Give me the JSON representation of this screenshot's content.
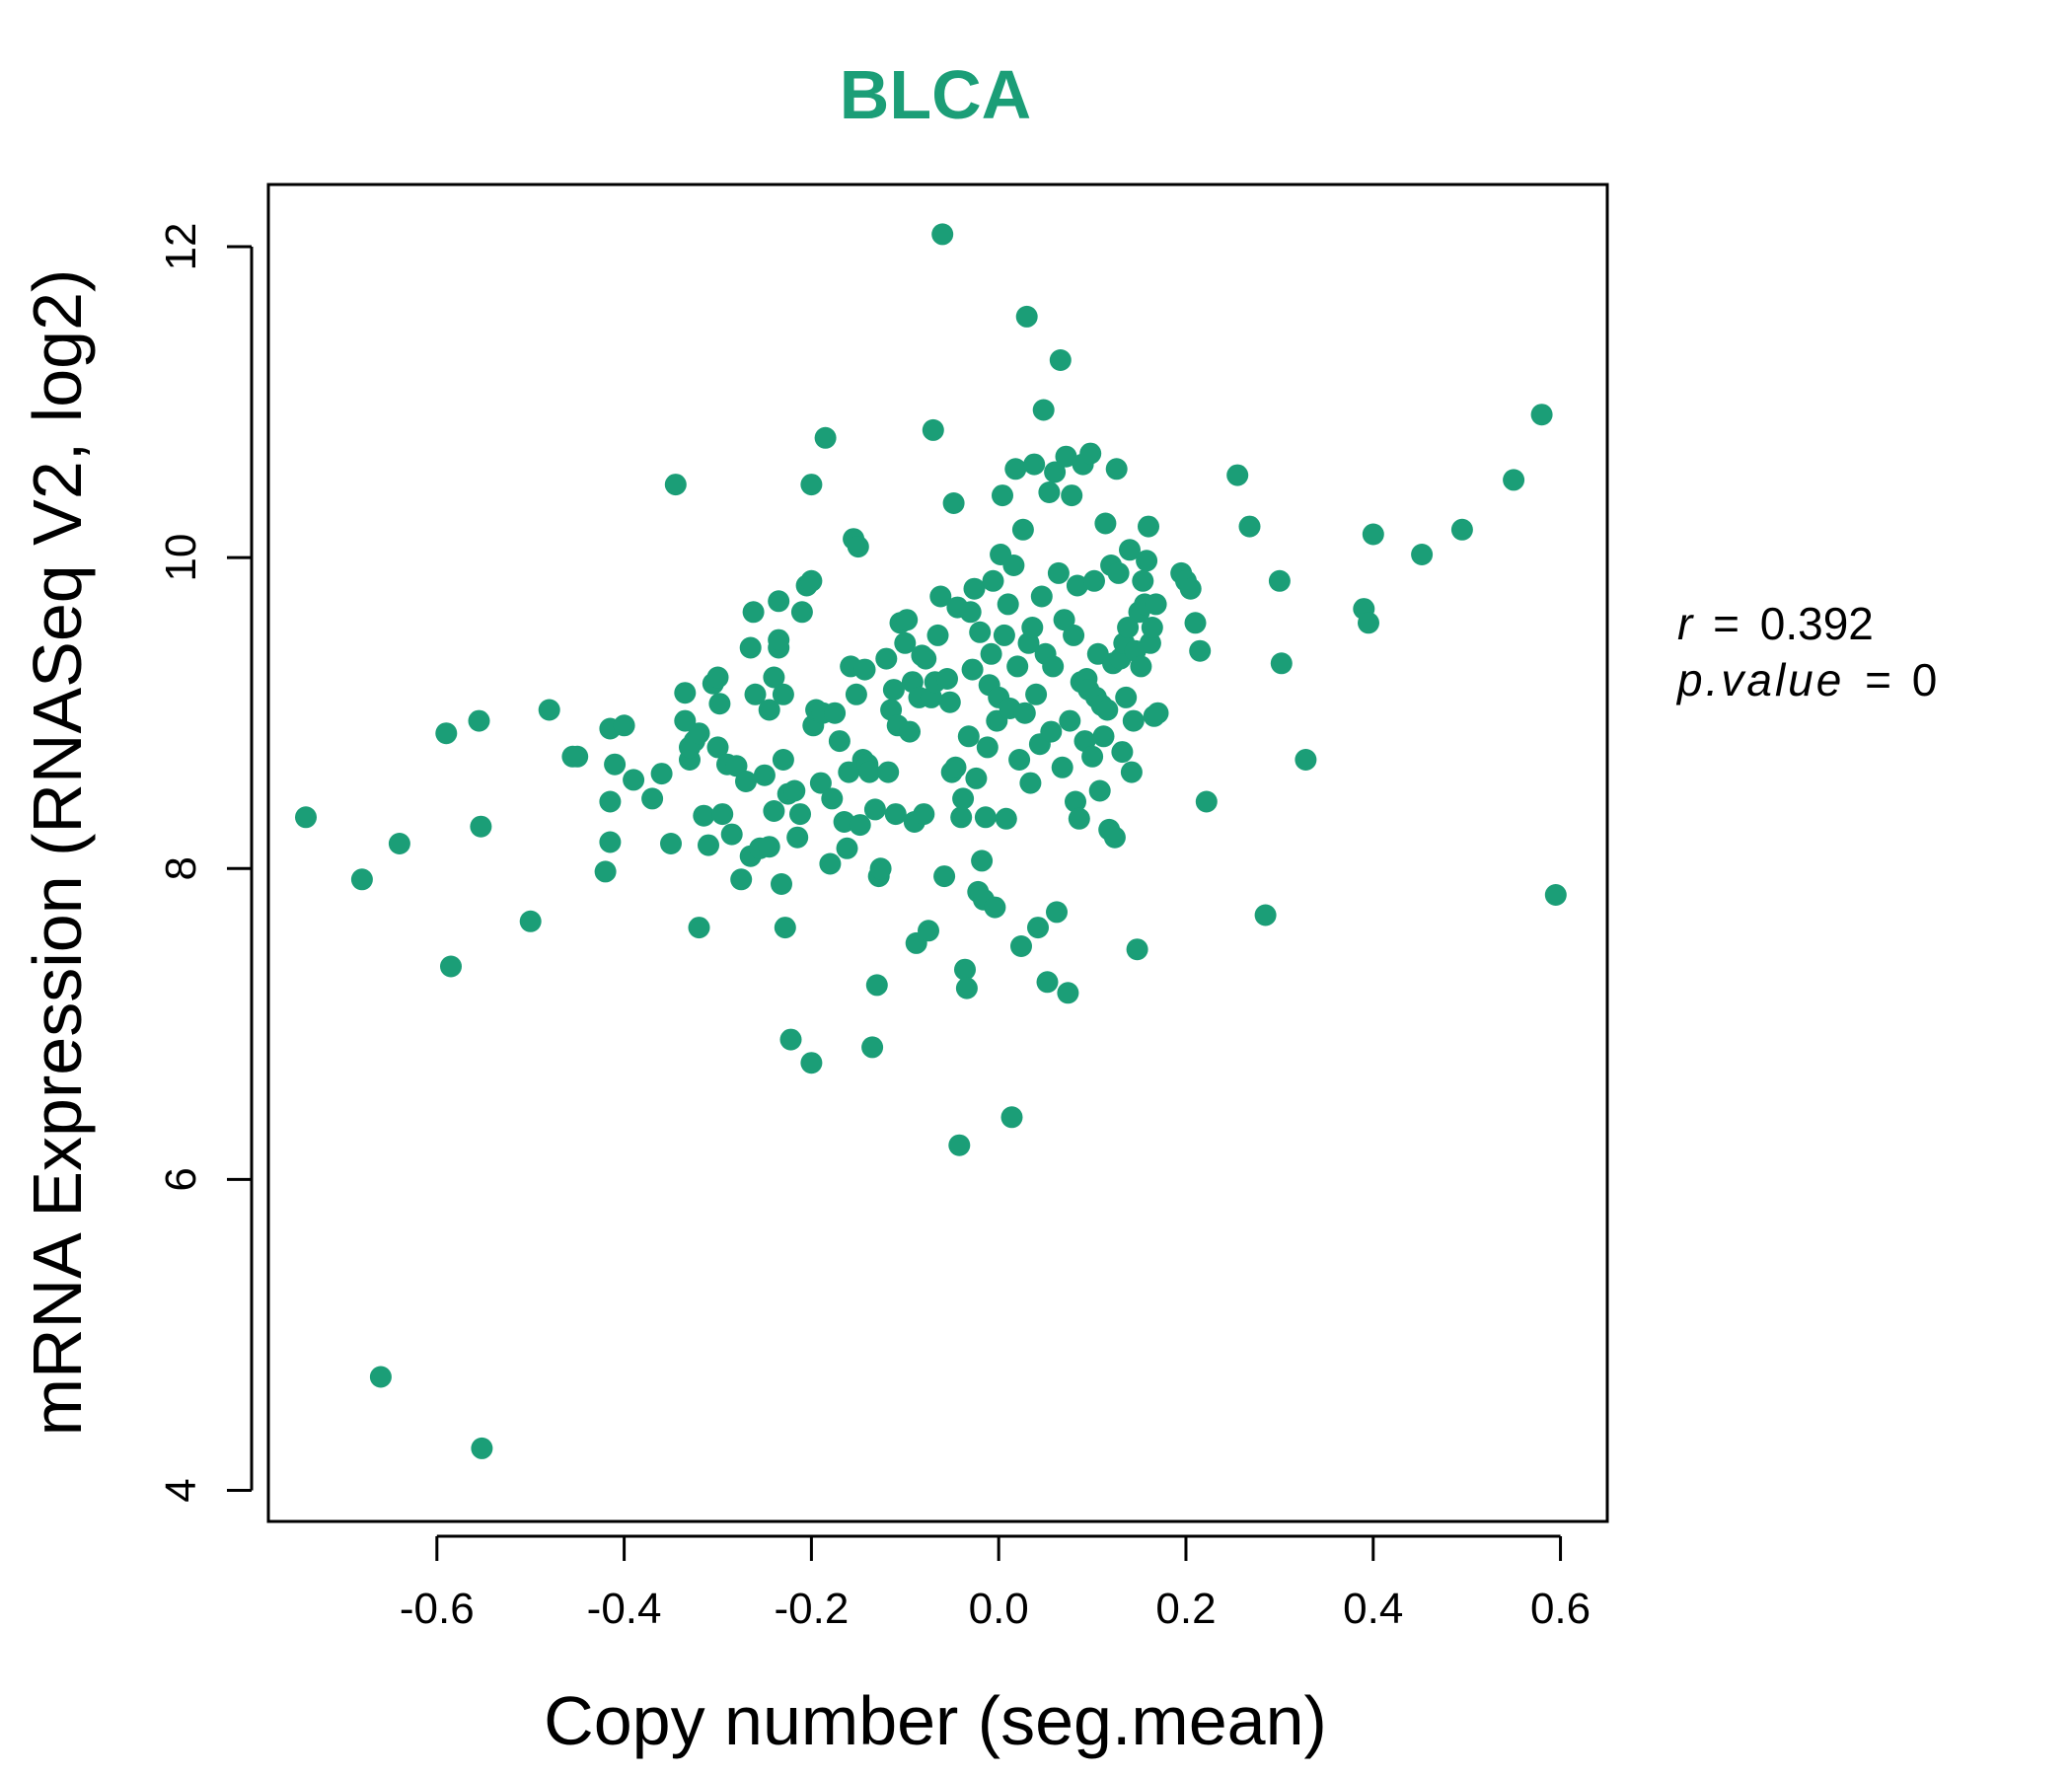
{
  "chart_data": {
    "type": "scatter",
    "title": "BLCA",
    "xlabel": "Copy number (seg.mean)",
    "ylabel": "mRNA Expression (RNASeq V2, log2)",
    "xlim": [
      -0.78,
      0.65
    ],
    "ylim": [
      3.8,
      12.4
    ],
    "xticks": [
      -0.6,
      -0.4,
      -0.2,
      0.0,
      0.2,
      0.4,
      0.6
    ],
    "xtick_labels": [
      "-0.6",
      "-0.4",
      "-0.2",
      "0.0",
      "0.2",
      "0.4",
      "0.6"
    ],
    "yticks": [
      4,
      6,
      8,
      10,
      12
    ],
    "ytick_labels": [
      "4",
      "6",
      "8",
      "10",
      "12"
    ],
    "grid": false,
    "legend": "none",
    "colors": {
      "points": "#1B9E77",
      "title": "#1B9E77",
      "axis": "#000000"
    },
    "annotation": {
      "r_label": "r",
      "r_value": "0.392",
      "p_label": "p.value",
      "p_value": "0",
      "eq": "="
    },
    "series": [
      {
        "points": [
          [
            -0.74,
            8.33
          ],
          [
            -0.68,
            7.93
          ],
          [
            -0.66,
            4.73
          ],
          [
            -0.64,
            8.16
          ],
          [
            -0.59,
            8.87
          ],
          [
            -0.585,
            7.37
          ],
          [
            -0.555,
            8.95
          ],
          [
            -0.553,
            8.27
          ],
          [
            -0.552,
            4.27
          ],
          [
            -0.5,
            7.66
          ],
          [
            -0.48,
            9.02
          ],
          [
            -0.455,
            8.72
          ],
          [
            -0.45,
            8.72
          ],
          [
            -0.42,
            7.98
          ],
          [
            -0.415,
            8.43
          ],
          [
            -0.415,
            8.17
          ],
          [
            -0.415,
            8.9
          ],
          [
            -0.41,
            8.67
          ],
          [
            -0.4,
            8.92
          ],
          [
            -0.39,
            8.57
          ],
          [
            -0.37,
            8.45
          ],
          [
            -0.36,
            8.61
          ],
          [
            -0.35,
            8.16
          ],
          [
            -0.345,
            10.47
          ],
          [
            -0.335,
            9.13
          ],
          [
            -0.335,
            8.95
          ],
          [
            -0.33,
            8.7
          ],
          [
            -0.33,
            8.78
          ],
          [
            -0.325,
            8.82
          ],
          [
            -0.32,
            8.87
          ],
          [
            -0.32,
            7.62
          ],
          [
            -0.315,
            8.34
          ],
          [
            -0.31,
            8.15
          ],
          [
            -0.305,
            9.19
          ],
          [
            -0.3,
            9.23
          ],
          [
            -0.3,
            8.78
          ],
          [
            -0.298,
            9.06
          ],
          [
            -0.295,
            8.35
          ],
          [
            -0.29,
            8.67
          ],
          [
            -0.285,
            8.22
          ],
          [
            -0.28,
            8.66
          ],
          [
            -0.275,
            7.93
          ],
          [
            -0.27,
            8.56
          ],
          [
            -0.265,
            9.42
          ],
          [
            -0.265,
            8.08
          ],
          [
            -0.262,
            9.65
          ],
          [
            -0.26,
            9.12
          ],
          [
            -0.255,
            8.13
          ],
          [
            -0.25,
            8.6
          ],
          [
            -0.245,
            8.14
          ],
          [
            -0.245,
            9.02
          ],
          [
            -0.24,
            9.23
          ],
          [
            -0.24,
            8.37
          ],
          [
            -0.235,
            9.42
          ],
          [
            -0.235,
            9.47
          ],
          [
            -0.235,
            9.72
          ],
          [
            -0.232,
            7.9
          ],
          [
            -0.23,
            8.7
          ],
          [
            -0.23,
            9.12
          ],
          [
            -0.228,
            7.62
          ],
          [
            -0.225,
            8.48
          ],
          [
            -0.222,
            6.9
          ],
          [
            -0.218,
            8.5
          ],
          [
            -0.215,
            8.2
          ],
          [
            -0.212,
            8.35
          ],
          [
            -0.21,
            9.65
          ],
          [
            -0.205,
            9.82
          ],
          [
            -0.2,
            9.85
          ],
          [
            -0.2,
            6.75
          ],
          [
            -0.2,
            10.47
          ],
          [
            -0.198,
            8.92
          ],
          [
            -0.195,
            9.02
          ],
          [
            -0.19,
            8.55
          ],
          [
            -0.188,
            9.0
          ],
          [
            -0.185,
            10.77
          ],
          [
            -0.18,
            8.03
          ],
          [
            -0.178,
            8.45
          ],
          [
            -0.175,
            9.0
          ],
          [
            -0.17,
            8.82
          ],
          [
            -0.165,
            8.3
          ],
          [
            -0.162,
            8.13
          ],
          [
            -0.16,
            8.62
          ],
          [
            -0.158,
            9.3
          ],
          [
            -0.155,
            10.12
          ],
          [
            -0.152,
            9.12
          ],
          [
            -0.15,
            10.07
          ],
          [
            -0.148,
            8.28
          ],
          [
            -0.145,
            8.7
          ],
          [
            -0.143,
            9.28
          ],
          [
            -0.14,
            8.67
          ],
          [
            -0.138,
            8.62
          ],
          [
            -0.135,
            6.85
          ],
          [
            -0.132,
            8.38
          ],
          [
            -0.13,
            7.25
          ],
          [
            -0.128,
            7.95
          ],
          [
            -0.126,
            8.0
          ],
          [
            -0.12,
            9.35
          ],
          [
            -0.118,
            8.62
          ],
          [
            -0.115,
            9.02
          ],
          [
            -0.112,
            9.15
          ],
          [
            -0.11,
            8.35
          ],
          [
            -0.108,
            8.92
          ],
          [
            -0.105,
            9.58
          ],
          [
            -0.1,
            9.45
          ],
          [
            -0.098,
            9.6
          ],
          [
            -0.095,
            8.88
          ],
          [
            -0.092,
            9.2
          ],
          [
            -0.09,
            8.3
          ],
          [
            -0.088,
            7.52
          ],
          [
            -0.085,
            9.1
          ],
          [
            -0.082,
            9.37
          ],
          [
            -0.08,
            8.35
          ],
          [
            -0.078,
            9.35
          ],
          [
            -0.075,
            7.6
          ],
          [
            -0.072,
            9.1
          ],
          [
            -0.07,
            10.82
          ],
          [
            -0.068,
            9.2
          ],
          [
            -0.065,
            9.5
          ],
          [
            -0.062,
            9.75
          ],
          [
            -0.06,
            12.08
          ],
          [
            -0.058,
            7.95
          ],
          [
            -0.055,
            9.22
          ],
          [
            -0.052,
            9.07
          ],
          [
            -0.05,
            8.62
          ],
          [
            -0.048,
            10.35
          ],
          [
            -0.046,
            8.65
          ],
          [
            -0.044,
            9.68
          ],
          [
            -0.042,
            6.22
          ],
          [
            -0.04,
            8.33
          ],
          [
            -0.038,
            8.45
          ],
          [
            -0.036,
            7.35
          ],
          [
            -0.034,
            7.23
          ],
          [
            -0.032,
            8.85
          ],
          [
            -0.03,
            9.65
          ],
          [
            -0.028,
            9.28
          ],
          [
            -0.026,
            9.8
          ],
          [
            -0.024,
            8.58
          ],
          [
            -0.022,
            7.85
          ],
          [
            -0.02,
            9.52
          ],
          [
            -0.018,
            8.05
          ],
          [
            -0.016,
            7.8
          ],
          [
            -0.014,
            8.33
          ],
          [
            -0.012,
            8.78
          ],
          [
            -0.01,
            9.18
          ],
          [
            -0.008,
            9.38
          ],
          [
            -0.006,
            9.85
          ],
          [
            -0.004,
            7.75
          ],
          [
            -0.002,
            8.95
          ],
          [
            0.0,
            9.1
          ],
          [
            0.002,
            10.02
          ],
          [
            0.004,
            10.4
          ],
          [
            0.006,
            9.5
          ],
          [
            0.008,
            8.32
          ],
          [
            0.01,
            9.7
          ],
          [
            0.012,
            9.03
          ],
          [
            0.014,
            6.4
          ],
          [
            0.016,
            9.95
          ],
          [
            0.018,
            10.57
          ],
          [
            0.02,
            9.3
          ],
          [
            0.022,
            8.7
          ],
          [
            0.024,
            7.5
          ],
          [
            0.026,
            10.18
          ],
          [
            0.028,
            9.0
          ],
          [
            0.03,
            11.55
          ],
          [
            0.032,
            9.45
          ],
          [
            0.034,
            8.55
          ],
          [
            0.036,
            9.55
          ],
          [
            0.038,
            10.6
          ],
          [
            0.04,
            9.12
          ],
          [
            0.042,
            7.62
          ],
          [
            0.044,
            8.8
          ],
          [
            0.046,
            9.75
          ],
          [
            0.048,
            10.95
          ],
          [
            0.05,
            9.38
          ],
          [
            0.052,
            7.27
          ],
          [
            0.054,
            10.42
          ],
          [
            0.056,
            8.88
          ],
          [
            0.058,
            9.3
          ],
          [
            0.06,
            10.55
          ],
          [
            0.062,
            7.72
          ],
          [
            0.064,
            9.9
          ],
          [
            0.066,
            11.27
          ],
          [
            0.068,
            8.65
          ],
          [
            0.07,
            9.6
          ],
          [
            0.072,
            10.65
          ],
          [
            0.074,
            7.2
          ],
          [
            0.076,
            8.95
          ],
          [
            0.078,
            10.4
          ],
          [
            0.08,
            9.5
          ],
          [
            0.082,
            8.43
          ],
          [
            0.084,
            9.82
          ],
          [
            0.086,
            8.32
          ],
          [
            0.088,
            9.2
          ],
          [
            0.09,
            10.6
          ],
          [
            0.092,
            8.82
          ],
          [
            0.094,
            9.22
          ],
          [
            0.096,
            9.15
          ],
          [
            0.098,
            10.67
          ],
          [
            0.1,
            8.72
          ],
          [
            0.102,
            9.85
          ],
          [
            0.104,
            9.1
          ],
          [
            0.106,
            9.38
          ],
          [
            0.108,
            8.5
          ],
          [
            0.11,
            9.05
          ],
          [
            0.112,
            8.85
          ],
          [
            0.114,
            10.22
          ],
          [
            0.116,
            9.02
          ],
          [
            0.118,
            8.25
          ],
          [
            0.12,
            9.95
          ],
          [
            0.122,
            9.32
          ],
          [
            0.124,
            8.2
          ],
          [
            0.126,
            10.57
          ],
          [
            0.128,
            9.9
          ],
          [
            0.13,
            9.35
          ],
          [
            0.132,
            8.75
          ],
          [
            0.134,
            9.45
          ],
          [
            0.136,
            9.1
          ],
          [
            0.138,
            9.55
          ],
          [
            0.14,
            10.05
          ],
          [
            0.142,
            8.62
          ],
          [
            0.144,
            8.95
          ],
          [
            0.146,
            9.4
          ],
          [
            0.148,
            7.48
          ],
          [
            0.15,
            9.65
          ],
          [
            0.152,
            9.3
          ],
          [
            0.154,
            9.85
          ],
          [
            0.156,
            9.7
          ],
          [
            0.158,
            9.98
          ],
          [
            0.16,
            10.2
          ],
          [
            0.162,
            9.45
          ],
          [
            0.164,
            9.55
          ],
          [
            0.166,
            8.98
          ],
          [
            0.168,
            9.7
          ],
          [
            0.17,
            9.0
          ],
          [
            0.195,
            9.9
          ],
          [
            0.2,
            9.85
          ],
          [
            0.205,
            9.8
          ],
          [
            0.21,
            9.58
          ],
          [
            0.215,
            9.4
          ],
          [
            0.222,
            8.43
          ],
          [
            0.255,
            10.53
          ],
          [
            0.268,
            10.2
          ],
          [
            0.285,
            7.7
          ],
          [
            0.3,
            9.85
          ],
          [
            0.302,
            9.32
          ],
          [
            0.328,
            8.7
          ],
          [
            0.39,
            9.67
          ],
          [
            0.395,
            9.58
          ],
          [
            0.4,
            10.15
          ],
          [
            0.452,
            10.02
          ],
          [
            0.495,
            10.18
          ],
          [
            0.55,
            10.5
          ],
          [
            0.58,
            10.92
          ],
          [
            0.595,
            7.83
          ]
        ]
      }
    ]
  }
}
